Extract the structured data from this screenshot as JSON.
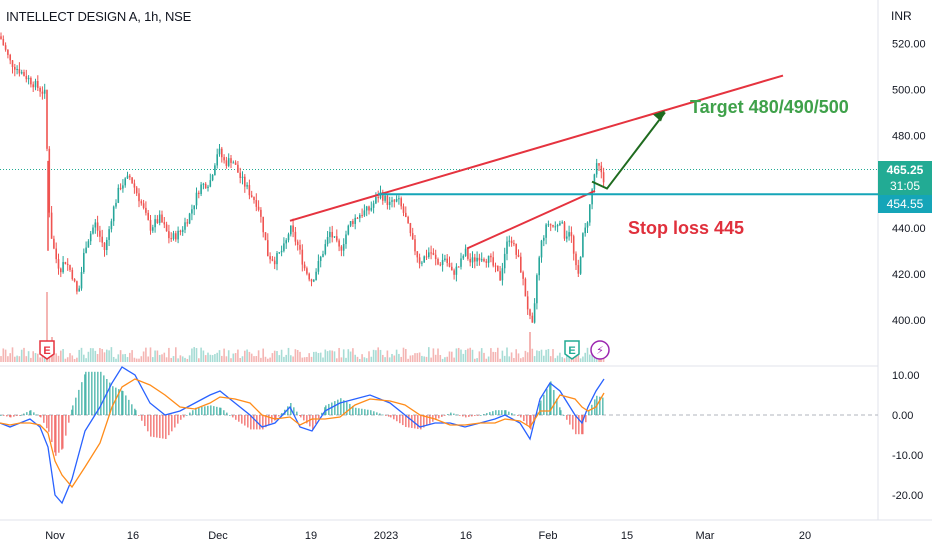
{
  "chart_data": {
    "type": "candlestick",
    "symbol_header": "INTELLECT DESIGN A, 1h, NSE",
    "price_axis": {
      "unit": "INR",
      "ticks": [
        "520.00",
        "500.00",
        "480.00",
        "460.00",
        "440.00",
        "420.00",
        "400.00"
      ],
      "ylim": [
        393,
        527
      ]
    },
    "macd_axis": {
      "ticks": [
        "10.00",
        "0.00",
        "-10.00",
        "-20.00"
      ]
    },
    "x_ticks": [
      "Nov",
      "16",
      "Dec",
      "19",
      "2023",
      "16",
      "Feb",
      "15",
      "Mar",
      "20"
    ],
    "last_price_label": "465.25",
    "countdown_label": "31:05",
    "level_label": "454.55",
    "level": 454.55,
    "annotations": {
      "target": "Target 480/490/500",
      "stop_loss": "Stop loss 445"
    },
    "price_path": [
      [
        0,
        523
      ],
      [
        10,
        512
      ],
      [
        20,
        508
      ],
      [
        30,
        504
      ],
      [
        40,
        500
      ],
      [
        45,
        498
      ],
      [
        48,
        462
      ],
      [
        50,
        440
      ],
      [
        55,
        428
      ],
      [
        60,
        422
      ],
      [
        65,
        426
      ],
      [
        72,
        420
      ],
      [
        78,
        410
      ],
      [
        85,
        432
      ],
      [
        95,
        442
      ],
      [
        105,
        430
      ],
      [
        112,
        446
      ],
      [
        120,
        458
      ],
      [
        130,
        462
      ],
      [
        140,
        452
      ],
      [
        150,
        440
      ],
      [
        160,
        444
      ],
      [
        170,
        435
      ],
      [
        180,
        438
      ],
      [
        190,
        446
      ],
      [
        200,
        458
      ],
      [
        210,
        460
      ],
      [
        218,
        474
      ],
      [
        225,
        468
      ],
      [
        232,
        470
      ],
      [
        240,
        462
      ],
      [
        250,
        455
      ],
      [
        258,
        450
      ],
      [
        263,
        440
      ],
      [
        268,
        428
      ],
      [
        275,
        426
      ],
      [
        285,
        432
      ],
      [
        290,
        440
      ],
      [
        298,
        432
      ],
      [
        305,
        422
      ],
      [
        312,
        417
      ],
      [
        320,
        426
      ],
      [
        330,
        438
      ],
      [
        340,
        430
      ],
      [
        350,
        442
      ],
      [
        360,
        446
      ],
      [
        370,
        448
      ],
      [
        380,
        455
      ],
      [
        390,
        450
      ],
      [
        398,
        452
      ],
      [
        405,
        445
      ],
      [
        412,
        434
      ],
      [
        420,
        425
      ],
      [
        430,
        430
      ],
      [
        438,
        424
      ],
      [
        445,
        427
      ],
      [
        452,
        420
      ],
      [
        460,
        424
      ],
      [
        465,
        430
      ],
      [
        470,
        425
      ],
      [
        480,
        428
      ],
      [
        490,
        426
      ],
      [
        500,
        418
      ],
      [
        505,
        430
      ],
      [
        510,
        437
      ],
      [
        515,
        430
      ],
      [
        520,
        424
      ],
      [
        525,
        412
      ],
      [
        530,
        400
      ],
      [
        533,
        396
      ],
      [
        537,
        420
      ],
      [
        542,
        435
      ],
      [
        548,
        442
      ],
      [
        555,
        440
      ],
      [
        560,
        444
      ],
      [
        565,
        436
      ],
      [
        570,
        440
      ],
      [
        575,
        424
      ],
      [
        578,
        418
      ],
      [
        582,
        435
      ],
      [
        586,
        440
      ],
      [
        590,
        450
      ],
      [
        595,
        465
      ],
      [
        598,
        467
      ],
      [
        602,
        462
      ],
      [
        605,
        458
      ]
    ],
    "lines": {
      "upper_trend": [
        [
          290,
          443
        ],
        [
          783,
          506
        ]
      ],
      "lower_trend": [
        [
          467,
          431
        ],
        [
          595,
          456
        ]
      ],
      "horizontal_level_segment": [
        [
          378,
          454.55
        ],
        [
          880,
          454.55
        ]
      ],
      "projection": [
        [
          592,
          460
        ],
        [
          607,
          457
        ],
        [
          665,
          490
        ]
      ]
    },
    "markers": [
      {
        "label": "E",
        "x": 47
      },
      {
        "label": "E",
        "x": 572
      },
      {
        "label": "⚡",
        "x": 600
      }
    ]
  }
}
